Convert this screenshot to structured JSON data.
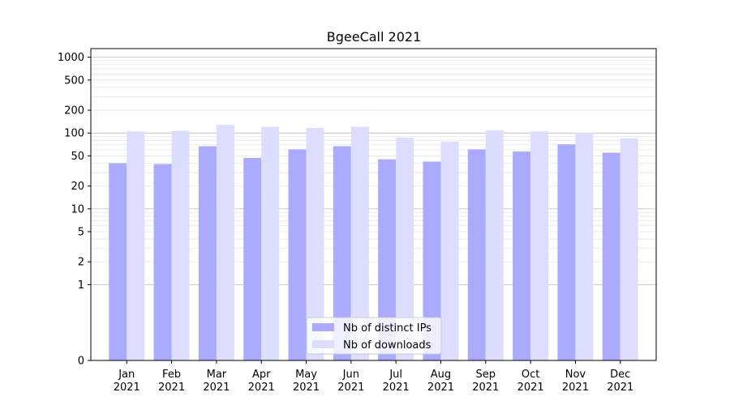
{
  "chart_data": {
    "type": "bar",
    "title": "BgeeCall 2021",
    "xlabel": "",
    "ylabel": "",
    "yscale": "symlog",
    "ylim": [
      0,
      1300
    ],
    "yticks": [
      0,
      1,
      2,
      5,
      10,
      20,
      50,
      100,
      200,
      500,
      1000
    ],
    "grid": "horizontal",
    "legend_position": "bottom-center",
    "categories": [
      "Jan",
      "Feb",
      "Mar",
      "Apr",
      "May",
      "Jun",
      "Jul",
      "Aug",
      "Sep",
      "Oct",
      "Nov",
      "Dec"
    ],
    "category_years": [
      "2021",
      "2021",
      "2021",
      "2021",
      "2021",
      "2021",
      "2021",
      "2021",
      "2021",
      "2021",
      "2021",
      "2021"
    ],
    "series": [
      {
        "name": "Nb of distinct IPs",
        "color": "#aaaaff",
        "values": [
          40,
          39,
          67,
          47,
          61,
          67,
          45,
          42,
          61,
          57,
          71,
          55
        ]
      },
      {
        "name": "Nb of downloads",
        "color": "#ddddff",
        "values": [
          105,
          107,
          128,
          121,
          117,
          121,
          87,
          77,
          109,
          105,
          101,
          85
        ]
      }
    ]
  }
}
